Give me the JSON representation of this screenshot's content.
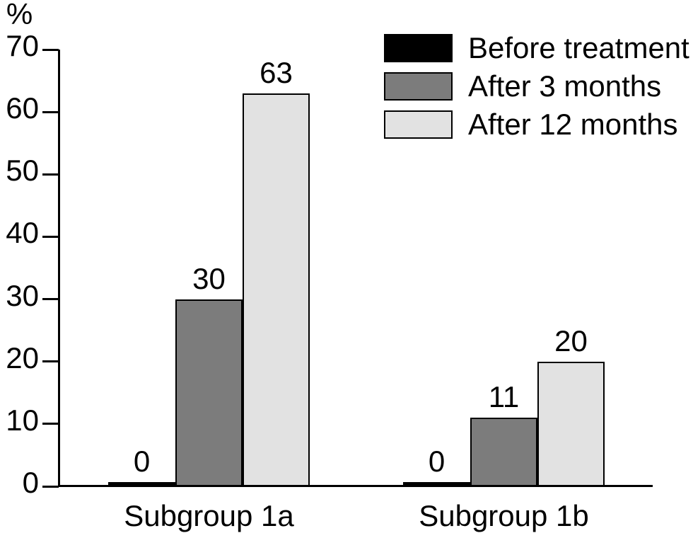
{
  "figure": {
    "background": "#ffffff",
    "axis_color": "#000000",
    "text_color": "#000000"
  },
  "chart_data": {
    "type": "bar",
    "title": "",
    "xlabel": "",
    "ylabel": "%",
    "ylim": [
      0,
      70
    ],
    "yticks": [
      0,
      10,
      20,
      30,
      40,
      50,
      60,
      70
    ],
    "grid": false,
    "legend_position": "top-right",
    "bar_value_labels_shown": true,
    "categories": [
      "Subgroup 1a",
      "Subgroup 1b"
    ],
    "series": [
      {
        "name": "Before treatment",
        "color": "#000000",
        "bordered": false,
        "values": [
          0,
          0
        ]
      },
      {
        "name": "After 3 months",
        "color": "#7c7c7c",
        "bordered": true,
        "values": [
          30,
          11
        ]
      },
      {
        "name": "After 12 months",
        "color": "#e2e2e2",
        "bordered": true,
        "values": [
          63,
          20
        ]
      }
    ]
  }
}
